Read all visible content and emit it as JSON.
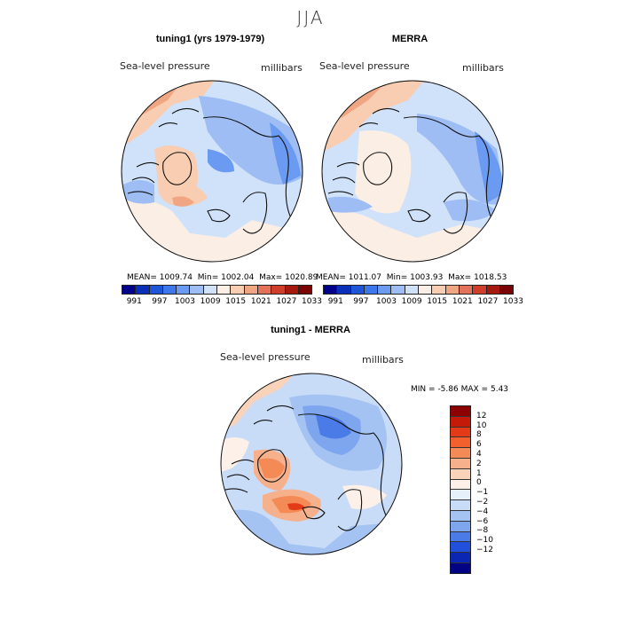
{
  "season": "JJA",
  "panels": [
    {
      "title": "tuning1 (yrs 1979-1979)",
      "variable": "Sea-level pressure",
      "units": "millibars",
      "stats": {
        "mean_label": "MEAN=",
        "mean": "1009.74",
        "min_label": "Min=",
        "min": "1002.04",
        "max_label": "Max=",
        "max": "1020.89"
      }
    },
    {
      "title": "MERRA",
      "variable": "Sea-level pressure",
      "units": "millibars",
      "stats": {
        "mean_label": "MEAN=",
        "mean": "1011.07",
        "min_label": "Min=",
        "min": "1003.93",
        "max_label": "Max=",
        "max": "1018.53"
      }
    },
    {
      "title": "tuning1 - MERRA",
      "variable": "Sea-level pressure",
      "units": "millibars",
      "stats": {
        "min_label": "MIN =",
        "min": "-5.86",
        "max_label": "MAX =",
        "max": "5.43"
      }
    }
  ],
  "chart_data": [
    {
      "type": "heatmap",
      "projection": "north-polar-stereographic",
      "title": "tuning1 (yrs 1979-1979)",
      "subtitle": "Sea-level pressure",
      "units": "millibars",
      "mean": 1009.74,
      "min": 1002.04,
      "max": 1020.89,
      "colorbar_levels": [
        991,
        997,
        1003,
        1009,
        1015,
        1021,
        1027,
        1033
      ],
      "colorbar_colors": [
        "#00008b",
        "#0a2fb8",
        "#1f55d9",
        "#3c78ec",
        "#6a9af2",
        "#9dbdf4",
        "#cfe2f9",
        "#fbeee4",
        "#f8cdb1",
        "#f1a683",
        "#e2725a",
        "#cf3e2b",
        "#a7180f",
        "#7a0303"
      ]
    },
    {
      "type": "heatmap",
      "projection": "north-polar-stereographic",
      "title": "MERRA",
      "subtitle": "Sea-level pressure",
      "units": "millibars",
      "mean": 1011.07,
      "min": 1003.93,
      "max": 1018.53,
      "colorbar_levels": [
        991,
        997,
        1003,
        1009,
        1015,
        1021,
        1027,
        1033
      ],
      "colorbar_colors": [
        "#00008b",
        "#0a2fb8",
        "#1f55d9",
        "#3c78ec",
        "#6a9af2",
        "#9dbdf4",
        "#cfe2f9",
        "#fbeee4",
        "#f8cdb1",
        "#f1a683",
        "#e2725a",
        "#cf3e2b",
        "#a7180f",
        "#7a0303"
      ]
    },
    {
      "type": "heatmap",
      "projection": "north-polar-stereographic",
      "title": "tuning1 - MERRA",
      "subtitle": "Sea-level pressure",
      "units": "millibars",
      "min": -5.86,
      "max": 5.43,
      "colorbar_levels": [
        "12",
        "10",
        "8",
        "6",
        "4",
        "2",
        "1",
        "0",
        "−1",
        "−2",
        "−4",
        "−6",
        "−8",
        "−10",
        "−12"
      ],
      "colorbar_colors": [
        "#8c0000",
        "#c41a0a",
        "#e43a17",
        "#f3602e",
        "#f48a55",
        "#f6b08c",
        "#f9d2ba",
        "#fdf0e8",
        "#e6f0fb",
        "#c9dcf7",
        "#a4c3f2",
        "#7ea6ee",
        "#4b7be6",
        "#2150dc",
        "#0c26b4",
        "#020384"
      ]
    }
  ]
}
